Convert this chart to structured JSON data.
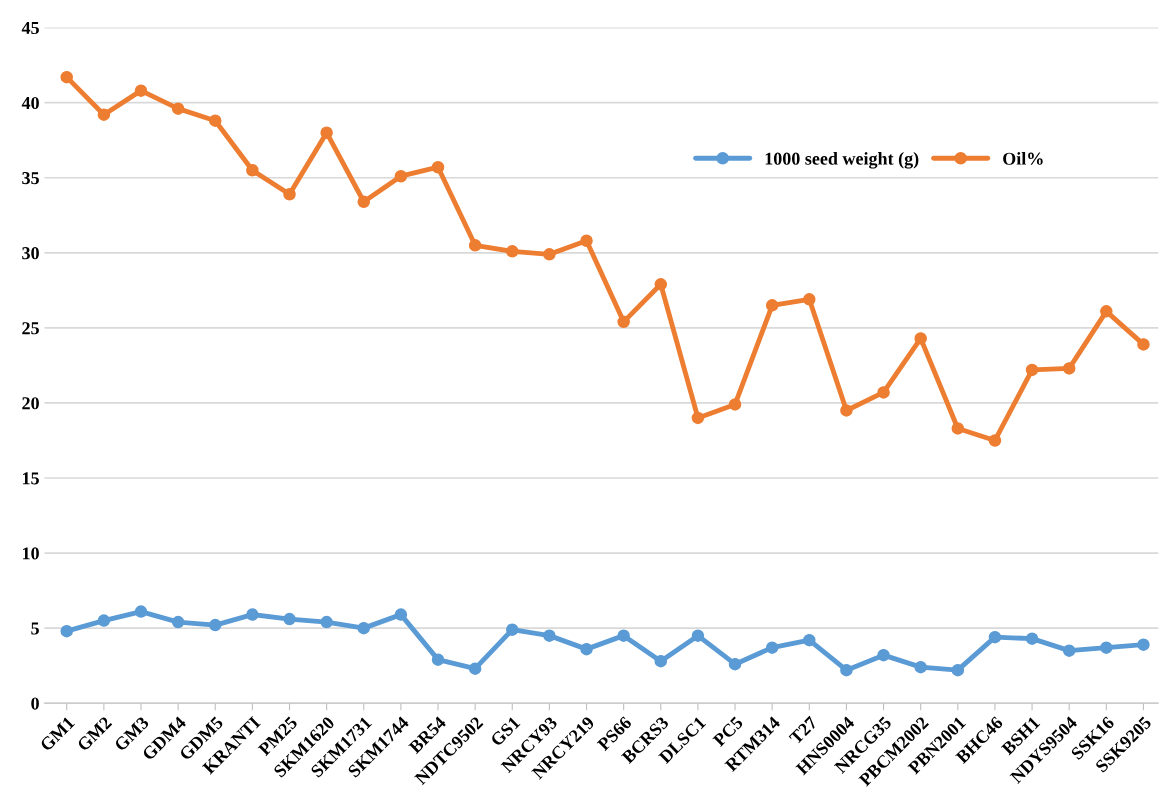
{
  "chart_data": {
    "type": "line",
    "categories": [
      "GM1",
      "GM2",
      "GM3",
      "GDM4",
      "GDM5",
      "KRANTI",
      "PM25",
      "SKM1620",
      "SKM1731",
      "SKM1744",
      "BR54",
      "NDTC9502",
      "GS1",
      "NRCY93",
      "NRCY219",
      "PS66",
      "BCRS3",
      "DLSC1",
      "PC5",
      "RTM314",
      "T27",
      "HNS0004",
      "NRCG35",
      "PBCM2002",
      "PBN2001",
      "BHC46",
      "BSH1",
      "NDYS9504",
      "SSK16",
      "SSK9205"
    ],
    "series": [
      {
        "name": "1000 seed weight (g)",
        "color": "#5b9bd5",
        "values": [
          4.8,
          5.5,
          6.1,
          5.4,
          5.2,
          5.9,
          5.6,
          5.4,
          5.0,
          5.9,
          2.9,
          2.3,
          4.9,
          4.5,
          3.6,
          4.5,
          2.8,
          4.5,
          2.6,
          3.7,
          4.2,
          2.2,
          3.2,
          2.4,
          2.2,
          4.4,
          4.3,
          3.5,
          3.7,
          3.9
        ]
      },
      {
        "name": "Oil%",
        "color": "#ed7d31",
        "values": [
          41.7,
          39.2,
          40.8,
          39.6,
          38.8,
          35.5,
          33.9,
          38.0,
          33.4,
          35.1,
          35.7,
          30.5,
          30.1,
          29.9,
          30.8,
          25.4,
          27.9,
          19.0,
          19.9,
          26.5,
          26.9,
          19.5,
          20.7,
          24.3,
          18.3,
          17.5,
          22.2,
          22.3,
          26.1,
          23.9
        ]
      }
    ],
    "ylim": [
      0,
      45
    ],
    "yticks": [
      0,
      5,
      10,
      15,
      20,
      25,
      30,
      35,
      40,
      45
    ],
    "grid": "y",
    "legend": "top right",
    "marker": "circle",
    "line_style": "solid"
  }
}
